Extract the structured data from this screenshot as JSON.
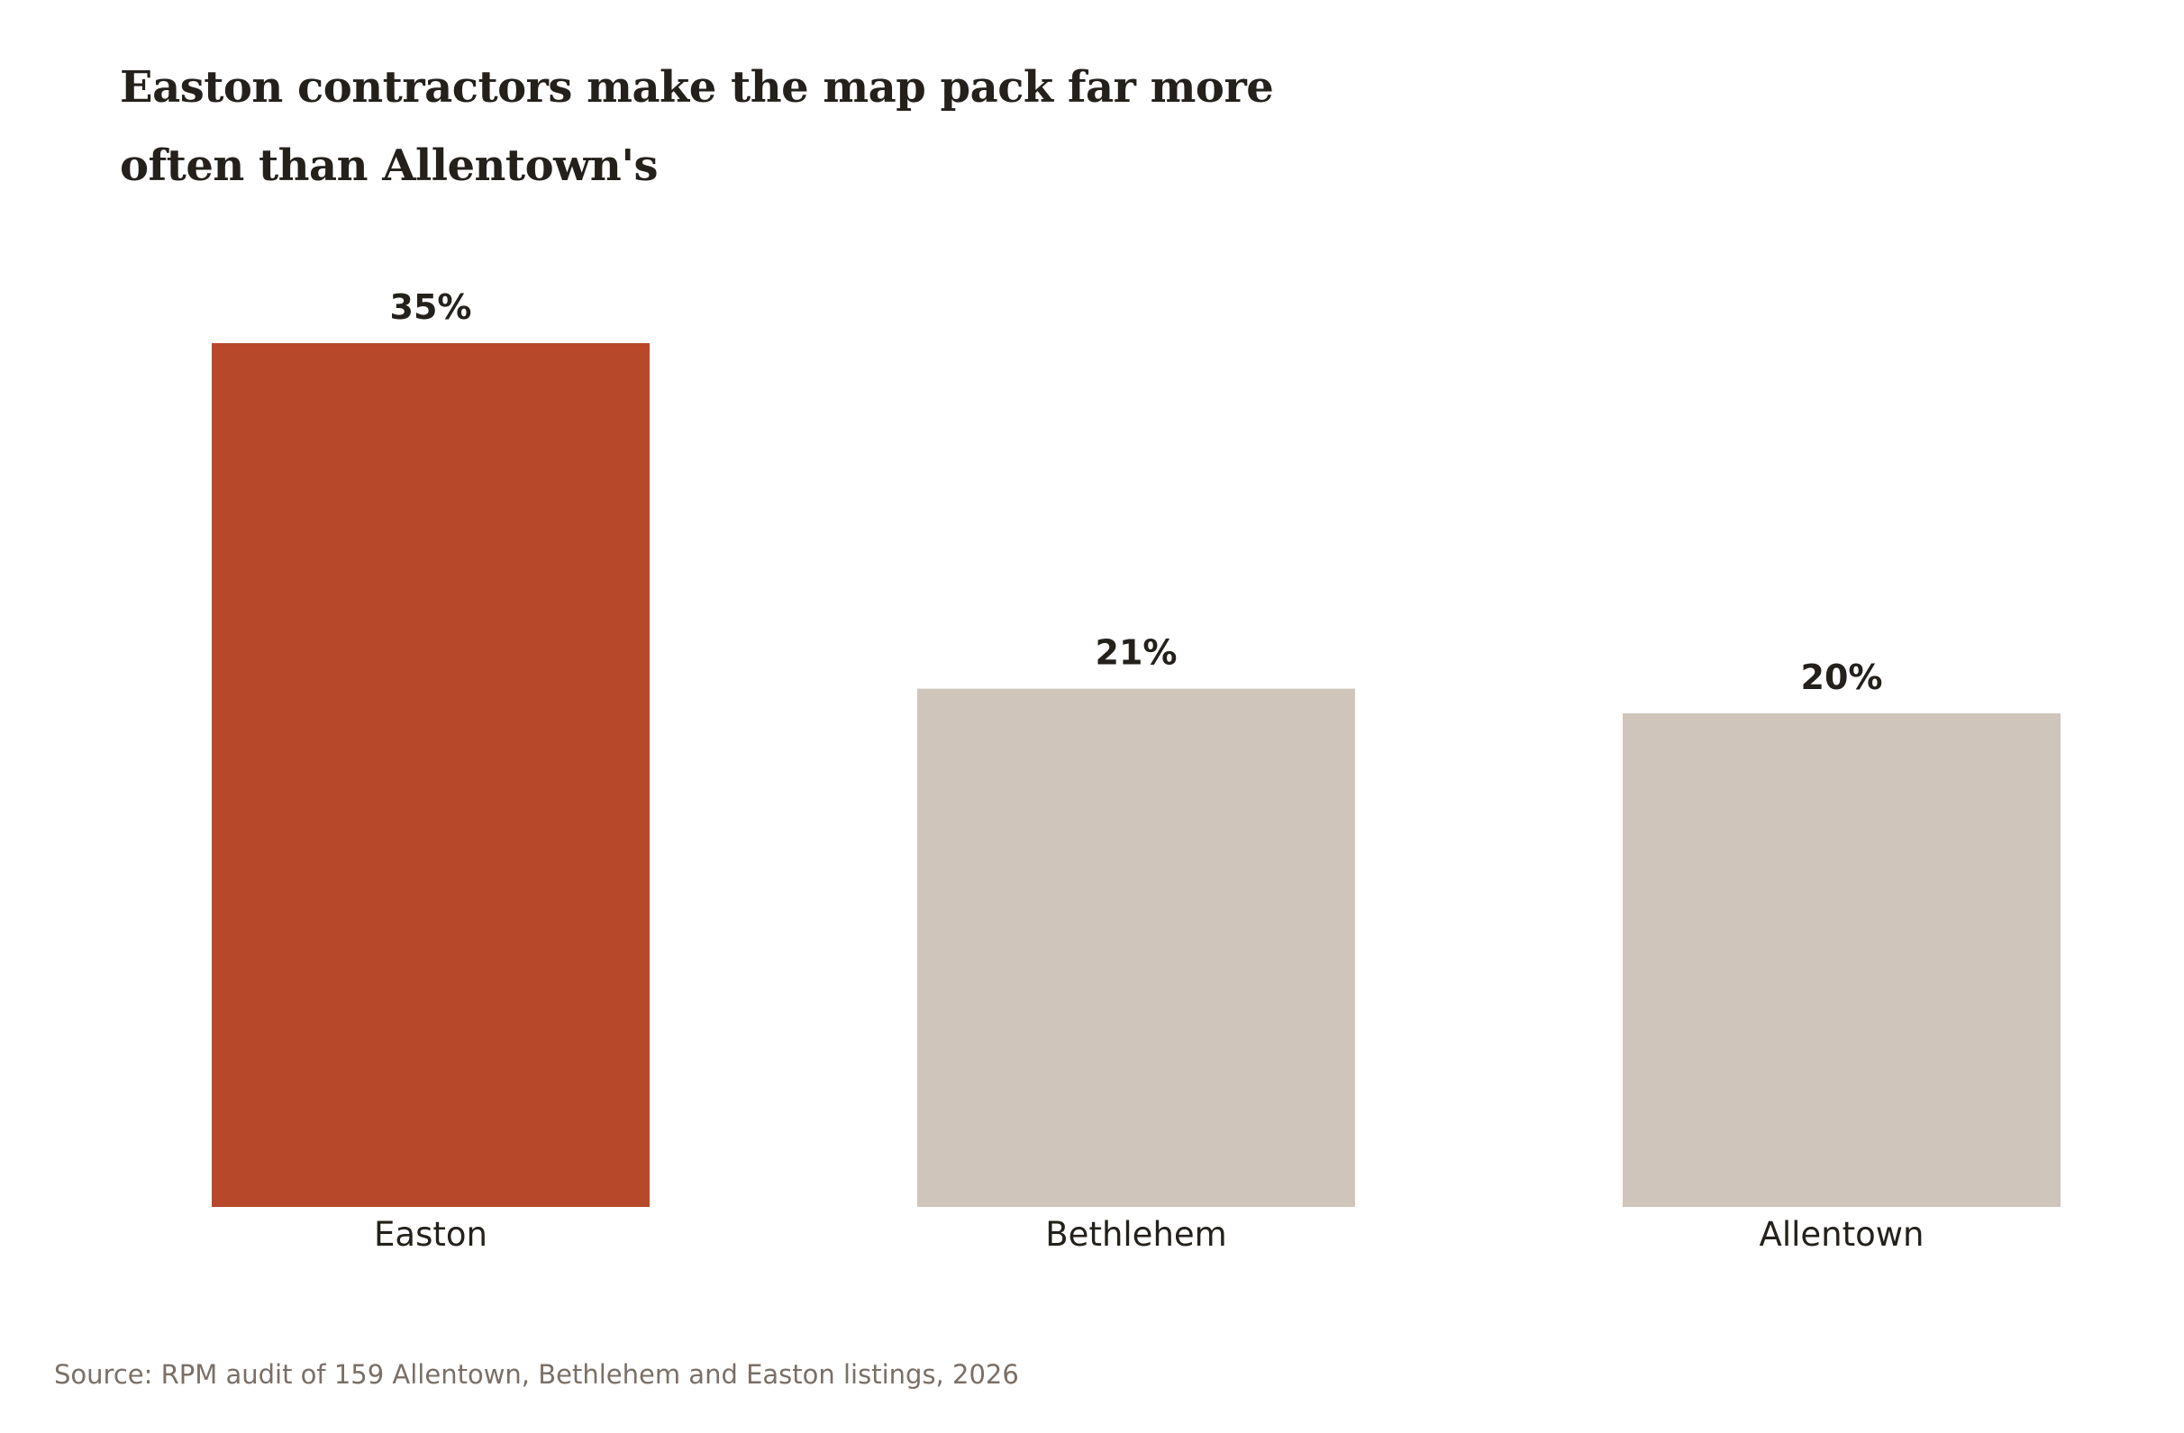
{
  "chart_data": {
    "type": "bar",
    "title_lines": [
      "Easton contractors make the map pack far more",
      "often than Allentown's"
    ],
    "categories": [
      "Easton",
      "Bethlehem",
      "Allentown"
    ],
    "values": [
      35,
      21,
      20
    ],
    "value_labels": [
      "35%",
      "21%",
      "20%"
    ],
    "ylim": [
      0,
      35
    ],
    "grid": false,
    "xlabel": "",
    "ylabel": "",
    "colors": {
      "highlight": "#b8482a",
      "muted": "#cfc5ba"
    },
    "highlight_index": 0,
    "source": "Source: RPM audit of 159 Allentown, Bethlehem and Easton listings, 2026"
  }
}
